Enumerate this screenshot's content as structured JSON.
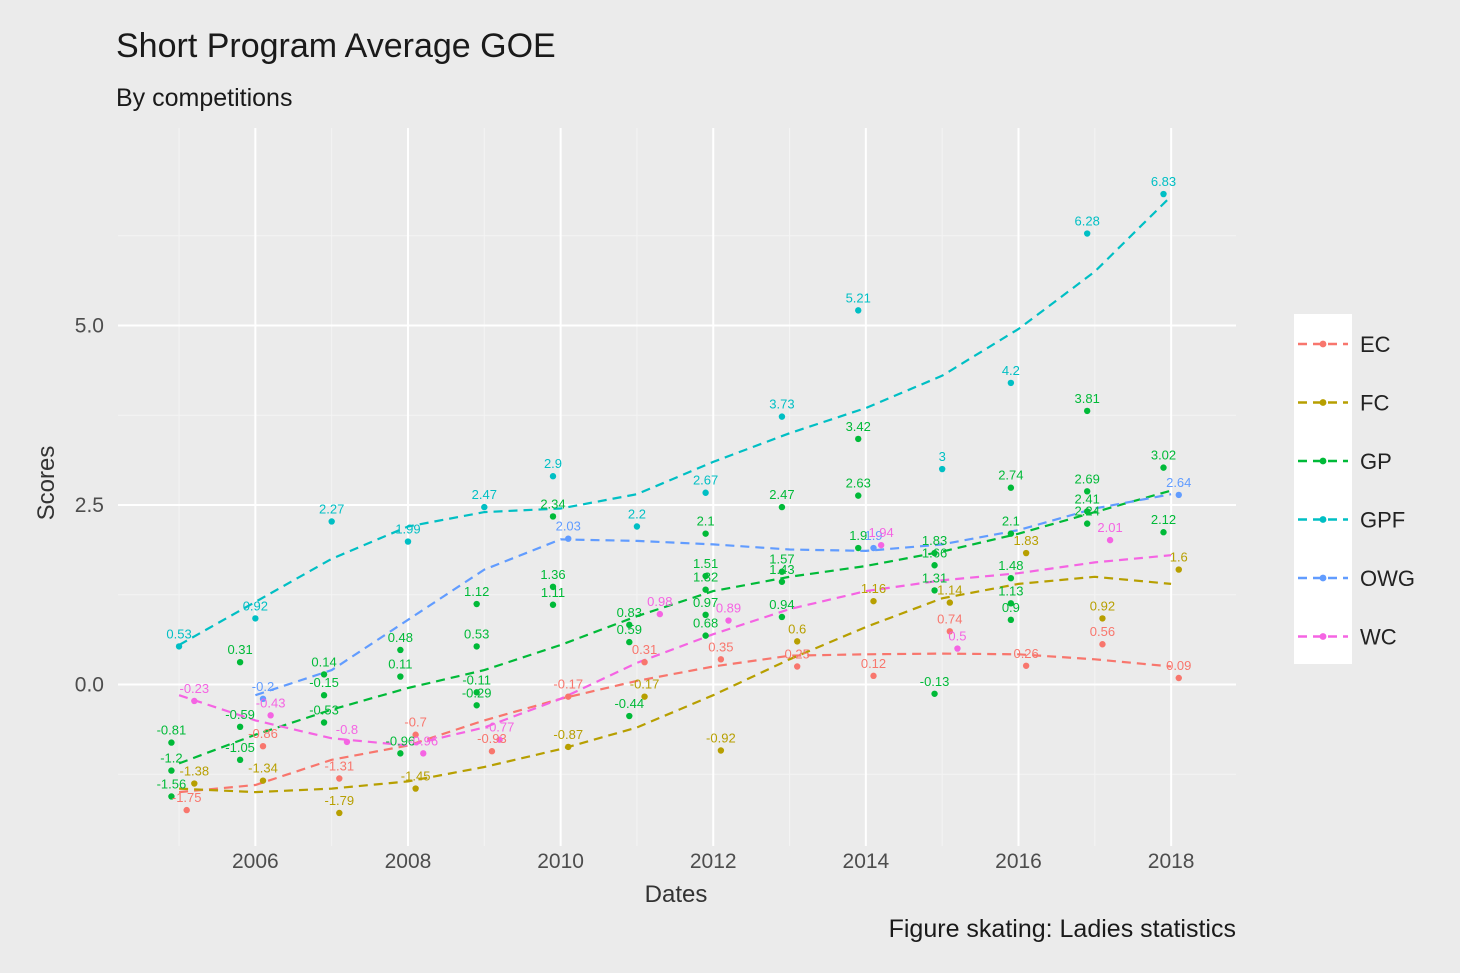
{
  "chart_data": {
    "type": "scatter",
    "title": "Short Program Average GOE",
    "subtitle": "By competitions",
    "caption": "Figure skating: Ladies statistics",
    "xlabel": "Dates",
    "ylabel": "Scores",
    "xlim": [
      2004.2,
      2018.85
    ],
    "ylim": [
      -2.25,
      7.75
    ],
    "x_ticks": [
      2006,
      2008,
      2010,
      2012,
      2014,
      2016,
      2018
    ],
    "y_ticks": [
      0.0,
      2.5,
      5.0
    ],
    "y_tick_labels": [
      "0.0",
      "2.5",
      "5.0"
    ],
    "legend_position": "right",
    "series": [
      {
        "name": "EC",
        "color": "#F8766D",
        "points": [
          {
            "x": 2005.1,
            "y": -1.75,
            "label": "-1.75"
          },
          {
            "x": 2006.1,
            "y": -0.86,
            "label": "-0.86"
          },
          {
            "x": 2007.1,
            "y": -1.31,
            "label": "-1.31"
          },
          {
            "x": 2008.1,
            "y": -0.7,
            "label": "-0.7"
          },
          {
            "x": 2009.1,
            "y": -0.93,
            "label": "-0.93"
          },
          {
            "x": 2010.1,
            "y": -0.17,
            "label": "-0.17"
          },
          {
            "x": 2011.1,
            "y": 0.31,
            "label": "0.31"
          },
          {
            "x": 2012.1,
            "y": 0.35,
            "label": "0.35"
          },
          {
            "x": 2013.1,
            "y": 0.25,
            "label": "0.25"
          },
          {
            "x": 2014.1,
            "y": 0.12,
            "label": "0.12"
          },
          {
            "x": 2015.1,
            "y": 0.74,
            "label": "0.74"
          },
          {
            "x": 2016.1,
            "y": 0.26,
            "label": "0.26"
          },
          {
            "x": 2017.1,
            "y": 0.56,
            "label": "0.56"
          },
          {
            "x": 2018.1,
            "y": 0.09,
            "label": "0.09"
          }
        ],
        "trend": [
          [
            2005.0,
            -1.5
          ],
          [
            2006.0,
            -1.4
          ],
          [
            2007.0,
            -1.05
          ],
          [
            2008.0,
            -0.85
          ],
          [
            2009.0,
            -0.5
          ],
          [
            2010.0,
            -0.2
          ],
          [
            2011.0,
            0.05
          ],
          [
            2012.0,
            0.25
          ],
          [
            2013.0,
            0.4
          ],
          [
            2014.0,
            0.42
          ],
          [
            2015.0,
            0.43
          ],
          [
            2016.0,
            0.42
          ],
          [
            2017.0,
            0.35
          ],
          [
            2018.0,
            0.25
          ]
        ]
      },
      {
        "name": "FC",
        "color": "#B79F00",
        "points": [
          {
            "x": 2005.2,
            "y": -1.38,
            "label": "-1.38"
          },
          {
            "x": 2006.1,
            "y": -1.34,
            "label": "-1.34"
          },
          {
            "x": 2007.1,
            "y": -1.79,
            "label": "-1.79"
          },
          {
            "x": 2008.1,
            "y": -1.45,
            "label": "-1.45"
          },
          {
            "x": 2010.1,
            "y": -0.87,
            "label": "-0.87"
          },
          {
            "x": 2011.1,
            "y": -0.17,
            "label": "-0.17"
          },
          {
            "x": 2012.1,
            "y": -0.92,
            "label": "-0.92"
          },
          {
            "x": 2013.1,
            "y": 0.6,
            "label": "0.6"
          },
          {
            "x": 2014.1,
            "y": 1.16,
            "label": "1.16"
          },
          {
            "x": 2015.1,
            "y": 1.14,
            "label": "1.14"
          },
          {
            "x": 2016.1,
            "y": 1.83,
            "label": "1.83"
          },
          {
            "x": 2017.1,
            "y": 0.92,
            "label": "0.92"
          },
          {
            "x": 2018.1,
            "y": 1.6,
            "label": "1.6"
          }
        ],
        "trend": [
          [
            2005.0,
            -1.45
          ],
          [
            2006.0,
            -1.5
          ],
          [
            2007.0,
            -1.45
          ],
          [
            2008.0,
            -1.35
          ],
          [
            2009.0,
            -1.15
          ],
          [
            2010.0,
            -0.9
          ],
          [
            2011.0,
            -0.6
          ],
          [
            2012.0,
            -0.15
          ],
          [
            2013.0,
            0.35
          ],
          [
            2014.0,
            0.8
          ],
          [
            2015.0,
            1.2
          ],
          [
            2016.0,
            1.4
          ],
          [
            2017.0,
            1.5
          ],
          [
            2018.0,
            1.4
          ]
        ]
      },
      {
        "name": "GP",
        "color": "#00BA38",
        "points": [
          {
            "x": 2004.9,
            "y": -0.81,
            "label": "-0.81"
          },
          {
            "x": 2004.9,
            "y": -1.2,
            "label": "-1.2"
          },
          {
            "x": 2004.9,
            "y": -1.56,
            "label": "-1.56"
          },
          {
            "x": 2005.8,
            "y": 0.31,
            "label": "0.31"
          },
          {
            "x": 2005.8,
            "y": -0.59,
            "label": "-0.59"
          },
          {
            "x": 2005.8,
            "y": -1.05,
            "label": "-1.05"
          },
          {
            "x": 2006.9,
            "y": 0.14,
            "label": "0.14"
          },
          {
            "x": 2006.9,
            "y": -0.15,
            "label": "-0.15"
          },
          {
            "x": 2006.9,
            "y": -0.53,
            "label": "-0.53"
          },
          {
            "x": 2007.9,
            "y": 0.48,
            "label": "0.48"
          },
          {
            "x": 2007.9,
            "y": 0.11,
            "label": "0.11"
          },
          {
            "x": 2007.9,
            "y": -0.96,
            "label": "-0.96"
          },
          {
            "x": 2008.9,
            "y": 1.12,
            "label": "1.12"
          },
          {
            "x": 2008.9,
            "y": 0.53,
            "label": "0.53"
          },
          {
            "x": 2008.9,
            "y": -0.11,
            "label": "-0.11"
          },
          {
            "x": 2008.9,
            "y": -0.29,
            "label": "-0.29"
          },
          {
            "x": 2009.9,
            "y": 2.34,
            "label": "2.34"
          },
          {
            "x": 2009.9,
            "y": 1.36,
            "label": "1.36"
          },
          {
            "x": 2009.9,
            "y": 1.11,
            "label": "1.11"
          },
          {
            "x": 2010.9,
            "y": 0.83,
            "label": "0.83"
          },
          {
            "x": 2010.9,
            "y": 0.59,
            "label": "0.59"
          },
          {
            "x": 2010.9,
            "y": -0.44,
            "label": "-0.44"
          },
          {
            "x": 2011.9,
            "y": 2.1,
            "label": "2.1"
          },
          {
            "x": 2011.9,
            "y": 1.51,
            "label": "1.51"
          },
          {
            "x": 2011.9,
            "y": 1.32,
            "label": "1.32"
          },
          {
            "x": 2011.9,
            "y": 0.97,
            "label": "0.97"
          },
          {
            "x": 2011.9,
            "y": 0.68,
            "label": "0.68"
          },
          {
            "x": 2012.9,
            "y": 2.47,
            "label": "2.47"
          },
          {
            "x": 2012.9,
            "y": 1.57,
            "label": "1.57"
          },
          {
            "x": 2012.9,
            "y": 1.43,
            "label": "1.43"
          },
          {
            "x": 2012.9,
            "y": 0.94,
            "label": "0.94"
          },
          {
            "x": 2013.9,
            "y": 3.42,
            "label": "3.42"
          },
          {
            "x": 2013.9,
            "y": 2.63,
            "label": "2.63"
          },
          {
            "x": 2013.9,
            "y": 1.9,
            "label": "1.9"
          },
          {
            "x": 2014.9,
            "y": 1.83,
            "label": "1.83"
          },
          {
            "x": 2014.9,
            "y": 1.66,
            "label": "1.66"
          },
          {
            "x": 2014.9,
            "y": 1.31,
            "label": "1.31"
          },
          {
            "x": 2014.9,
            "y": -0.13,
            "label": "-0.13"
          },
          {
            "x": 2015.9,
            "y": 2.74,
            "label": "2.74"
          },
          {
            "x": 2015.9,
            "y": 2.1,
            "label": "2.1"
          },
          {
            "x": 2015.9,
            "y": 1.48,
            "label": "1.48"
          },
          {
            "x": 2015.9,
            "y": 1.13,
            "label": "1.13"
          },
          {
            "x": 2015.9,
            "y": 0.9,
            "label": "0.9"
          },
          {
            "x": 2016.9,
            "y": 3.81,
            "label": "3.81"
          },
          {
            "x": 2016.9,
            "y": 2.69,
            "label": "2.69"
          },
          {
            "x": 2016.9,
            "y": 2.41,
            "label": "2.41"
          },
          {
            "x": 2016.9,
            "y": 2.24,
            "label": "2.24"
          },
          {
            "x": 2017.9,
            "y": 3.02,
            "label": "3.02"
          },
          {
            "x": 2017.9,
            "y": 2.12,
            "label": "2.12"
          }
        ],
        "trend": [
          [
            2005.0,
            -1.1
          ],
          [
            2006.0,
            -0.7
          ],
          [
            2007.0,
            -0.35
          ],
          [
            2008.0,
            -0.05
          ],
          [
            2009.0,
            0.2
          ],
          [
            2010.0,
            0.55
          ],
          [
            2011.0,
            0.95
          ],
          [
            2012.0,
            1.3
          ],
          [
            2013.0,
            1.5
          ],
          [
            2014.0,
            1.65
          ],
          [
            2015.0,
            1.85
          ],
          [
            2016.0,
            2.1
          ],
          [
            2017.0,
            2.4
          ],
          [
            2018.0,
            2.7
          ]
        ]
      },
      {
        "name": "GPF",
        "color": "#00BFC4",
        "points": [
          {
            "x": 2005.0,
            "y": 0.53,
            "label": "0.53"
          },
          {
            "x": 2006.0,
            "y": 0.92,
            "label": "0.92"
          },
          {
            "x": 2007.0,
            "y": 2.27,
            "label": "2.27"
          },
          {
            "x": 2008.0,
            "y": 1.99,
            "label": "1.99"
          },
          {
            "x": 2009.0,
            "y": 2.47,
            "label": "2.47"
          },
          {
            "x": 2009.9,
            "y": 2.9,
            "label": "2.9"
          },
          {
            "x": 2011.0,
            "y": 2.2,
            "label": "2.2"
          },
          {
            "x": 2011.9,
            "y": 2.67,
            "label": "2.67"
          },
          {
            "x": 2012.9,
            "y": 3.73,
            "label": "3.73"
          },
          {
            "x": 2013.9,
            "y": 5.21,
            "label": "5.21"
          },
          {
            "x": 2015.0,
            "y": 3.0,
            "label": "3"
          },
          {
            "x": 2015.9,
            "y": 4.2,
            "label": "4.2"
          },
          {
            "x": 2016.9,
            "y": 6.28,
            "label": "6.28"
          },
          {
            "x": 2017.9,
            "y": 6.83,
            "label": "6.83"
          }
        ],
        "trend": [
          [
            2005.0,
            0.55
          ],
          [
            2006.0,
            1.15
          ],
          [
            2007.0,
            1.75
          ],
          [
            2008.0,
            2.2
          ],
          [
            2009.0,
            2.4
          ],
          [
            2010.0,
            2.45
          ],
          [
            2011.0,
            2.65
          ],
          [
            2012.0,
            3.1
          ],
          [
            2013.0,
            3.5
          ],
          [
            2014.0,
            3.85
          ],
          [
            2015.0,
            4.3
          ],
          [
            2016.0,
            4.95
          ],
          [
            2017.0,
            5.75
          ],
          [
            2018.0,
            6.8
          ]
        ]
      },
      {
        "name": "OWG",
        "color": "#619CFF",
        "points": [
          {
            "x": 2006.1,
            "y": -0.2,
            "label": "-0.2"
          },
          {
            "x": 2010.1,
            "y": 2.03,
            "label": "2.03"
          },
          {
            "x": 2014.1,
            "y": 1.9,
            "label": "1.9"
          },
          {
            "x": 2018.1,
            "y": 2.64,
            "label": "2.64"
          }
        ],
        "trend": [
          [
            2006.0,
            -0.15
          ],
          [
            2007.0,
            0.2
          ],
          [
            2008.0,
            0.9
          ],
          [
            2009.0,
            1.6
          ],
          [
            2010.0,
            2.02
          ],
          [
            2011.0,
            2.0
          ],
          [
            2012.0,
            1.95
          ],
          [
            2013.0,
            1.88
          ],
          [
            2014.0,
            1.86
          ],
          [
            2015.0,
            1.95
          ],
          [
            2016.0,
            2.15
          ],
          [
            2017.0,
            2.45
          ],
          [
            2018.0,
            2.65
          ]
        ]
      },
      {
        "name": "WC",
        "color": "#F564E3",
        "points": [
          {
            "x": 2005.2,
            "y": -0.23,
            "label": "-0.23"
          },
          {
            "x": 2006.2,
            "y": -0.43,
            "label": "-0.43"
          },
          {
            "x": 2007.2,
            "y": -0.8,
            "label": "-0.8"
          },
          {
            "x": 2008.2,
            "y": -0.96,
            "label": "-0.96"
          },
          {
            "x": 2009.2,
            "y": -0.77,
            "label": "-0.77"
          },
          {
            "x": 2011.3,
            "y": 0.98,
            "label": "0.98"
          },
          {
            "x": 2012.2,
            "y": 0.89,
            "label": "0.89"
          },
          {
            "x": 2014.2,
            "y": 1.94,
            "label": "1.94"
          },
          {
            "x": 2015.2,
            "y": 0.5,
            "label": "0.5"
          },
          {
            "x": 2017.2,
            "y": 2.01,
            "label": "2.01"
          }
        ],
        "trend": [
          [
            2005.0,
            -0.15
          ],
          [
            2006.0,
            -0.5
          ],
          [
            2007.0,
            -0.75
          ],
          [
            2008.0,
            -0.85
          ],
          [
            2009.0,
            -0.6
          ],
          [
            2010.0,
            -0.2
          ],
          [
            2011.0,
            0.3
          ],
          [
            2012.0,
            0.7
          ],
          [
            2013.0,
            1.05
          ],
          [
            2014.0,
            1.3
          ],
          [
            2015.0,
            1.45
          ],
          [
            2016.0,
            1.55
          ],
          [
            2017.0,
            1.7
          ],
          [
            2018.0,
            1.8
          ]
        ]
      }
    ]
  }
}
